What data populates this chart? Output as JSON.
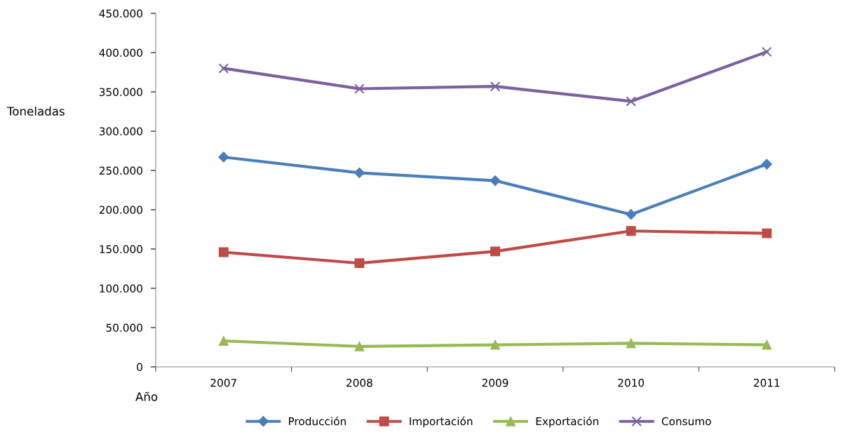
{
  "chart_data": {
    "type": "line",
    "xlabel": "Año",
    "ylabel": "Toneladas",
    "categories": [
      "2007",
      "2008",
      "2009",
      "2010",
      "2011"
    ],
    "series": [
      {
        "name": "Producción",
        "color": "#4a7ebb",
        "marker": "diamond",
        "values": [
          267000,
          247000,
          237000,
          194000,
          258000
        ]
      },
      {
        "name": "Importación",
        "color": "#be4b48",
        "marker": "square",
        "values": [
          146000,
          132000,
          147000,
          173000,
          170000
        ]
      },
      {
        "name": "Exportación",
        "color": "#98b954",
        "marker": "triangle",
        "values": [
          33000,
          26000,
          28000,
          30000,
          28000
        ]
      },
      {
        "name": "Consumo",
        "color": "#7d60a0",
        "marker": "cross",
        "values": [
          380000,
          354000,
          357000,
          338000,
          401000
        ]
      }
    ],
    "ylim": [
      0,
      450000
    ],
    "yticks": [
      0,
      {
        "value": 50000,
        "label": "50.000"
      },
      {
        "value": 100000,
        "label": "100.000"
      },
      {
        "value": 150000,
        "label": "150.000"
      },
      {
        "value": 200000,
        "label": "200.000"
      },
      {
        "value": 250000,
        "label": "250.000"
      },
      {
        "value": 300000,
        "label": "300.000"
      },
      {
        "value": 350000,
        "label": "350.000"
      },
      {
        "value": 400000,
        "label": "400.000"
      },
      {
        "value": 450000,
        "label": "450.000"
      }
    ],
    "grid": false,
    "legend": "bottom",
    "line_style": "solid"
  }
}
